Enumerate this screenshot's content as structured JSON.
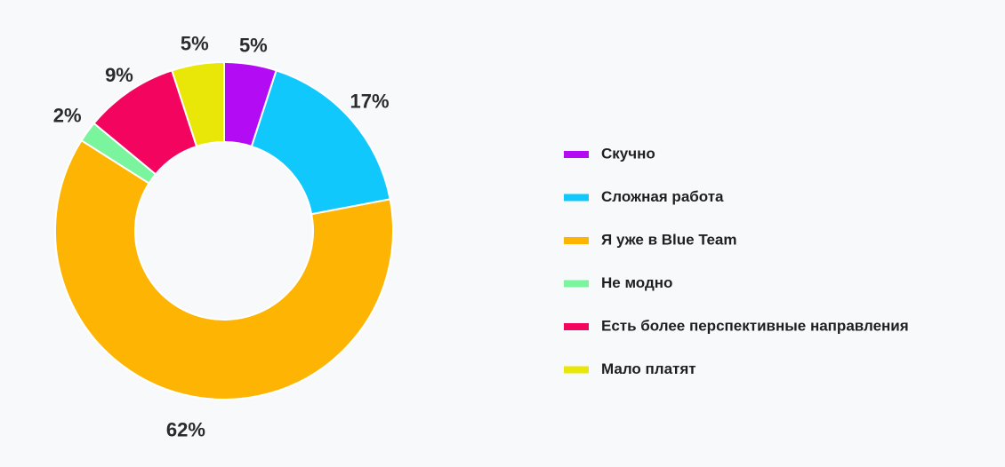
{
  "chart_data": {
    "type": "pie",
    "variant": "donut",
    "title": "",
    "legend_position": "right",
    "slices": [
      {
        "label": "Скучно",
        "value": 5,
        "value_label": "5%",
        "color": "#b30cf5"
      },
      {
        "label": "Сложная работа",
        "value": 17,
        "value_label": "17%",
        "color": "#10c8fb"
      },
      {
        "label": "Я уже в Blue Team",
        "value": 62,
        "value_label": "62%",
        "color": "#fdb403"
      },
      {
        "label": "Не модно",
        "value": 2,
        "value_label": "2%",
        "color": "#7af59e"
      },
      {
        "label": "Есть более перспективные направления",
        "value": 9,
        "value_label": "9%",
        "color": "#f3055f"
      },
      {
        "label": "Мало платят",
        "value": 5,
        "value_label": "5%",
        "color": "#e9e707"
      }
    ]
  }
}
